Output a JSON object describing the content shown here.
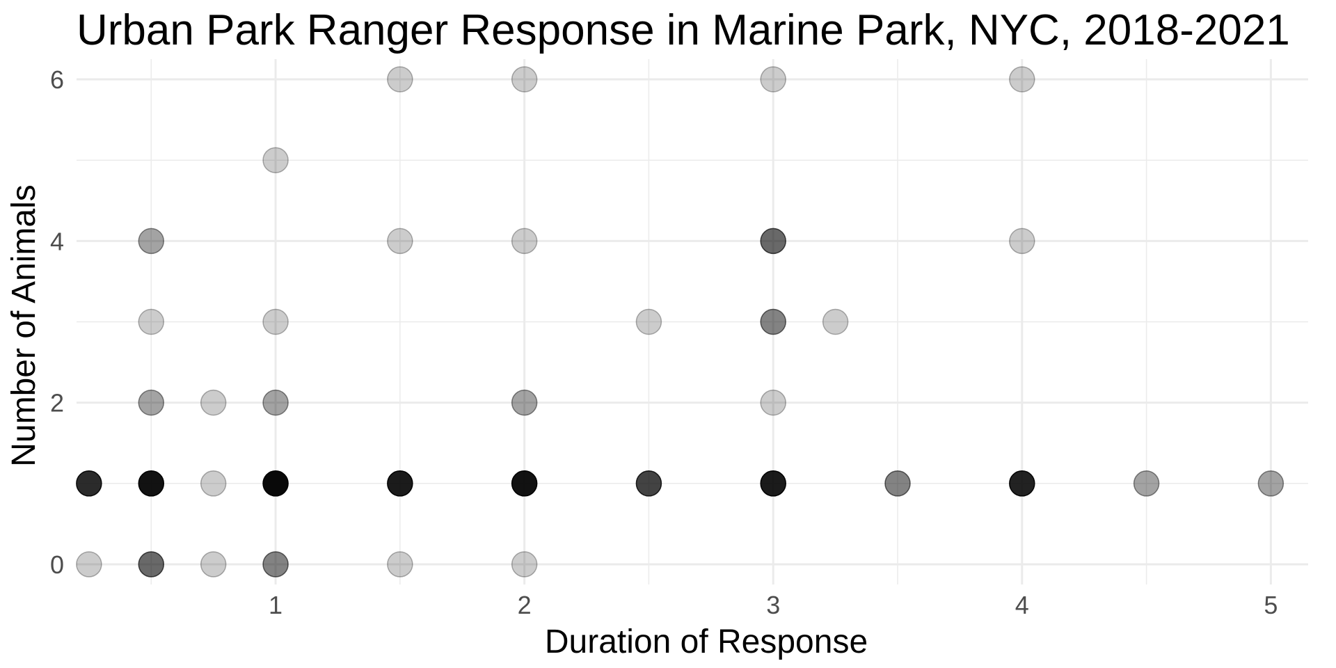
{
  "chart_data": {
    "type": "scatter",
    "title": "Urban Park Ranger Response in Marine Park, NYC, 2018-2021",
    "xlabel": "Duration of Response",
    "ylabel": "Number of Animals",
    "xlim": [
      0.2,
      5.15
    ],
    "ylim": [
      -0.25,
      6.25
    ],
    "x_ticks": [
      1,
      2,
      3,
      4,
      5
    ],
    "y_ticks": [
      0,
      2,
      4,
      6
    ],
    "x_minor_grid": [
      0.5,
      1.5,
      2.5,
      3.5,
      4.5
    ],
    "y_minor_grid": [
      1,
      3,
      5
    ],
    "grid": true,
    "point_color": "#000000",
    "point_alpha": 0.2,
    "grid_color": "#ebebeb",
    "points": [
      {
        "x": 0.25,
        "y": 0,
        "n": 1
      },
      {
        "x": 0.5,
        "y": 0,
        "n": 4
      },
      {
        "x": 0.75,
        "y": 0,
        "n": 1
      },
      {
        "x": 1,
        "y": 0,
        "n": 3
      },
      {
        "x": 1.5,
        "y": 0,
        "n": 1
      },
      {
        "x": 2,
        "y": 0,
        "n": 1
      },
      {
        "x": 0.25,
        "y": 1,
        "n": 8
      },
      {
        "x": 0.5,
        "y": 1,
        "n": 12
      },
      {
        "x": 0.75,
        "y": 1,
        "n": 1
      },
      {
        "x": 1,
        "y": 1,
        "n": 15
      },
      {
        "x": 1.5,
        "y": 1,
        "n": 10
      },
      {
        "x": 2,
        "y": 1,
        "n": 12
      },
      {
        "x": 2.5,
        "y": 1,
        "n": 6
      },
      {
        "x": 3,
        "y": 1,
        "n": 10
      },
      {
        "x": 3.5,
        "y": 1,
        "n": 3
      },
      {
        "x": 4,
        "y": 1,
        "n": 9
      },
      {
        "x": 4.5,
        "y": 1,
        "n": 2
      },
      {
        "x": 5,
        "y": 1,
        "n": 2
      },
      {
        "x": 0.5,
        "y": 2,
        "n": 2
      },
      {
        "x": 0.75,
        "y": 2,
        "n": 1
      },
      {
        "x": 1,
        "y": 2,
        "n": 2
      },
      {
        "x": 2,
        "y": 2,
        "n": 2
      },
      {
        "x": 3,
        "y": 2,
        "n": 1
      },
      {
        "x": 0.5,
        "y": 3,
        "n": 1
      },
      {
        "x": 1,
        "y": 3,
        "n": 1
      },
      {
        "x": 2.5,
        "y": 3,
        "n": 1
      },
      {
        "x": 3,
        "y": 3,
        "n": 3
      },
      {
        "x": 3.25,
        "y": 3,
        "n": 1
      },
      {
        "x": 0.5,
        "y": 4,
        "n": 2
      },
      {
        "x": 1.5,
        "y": 4,
        "n": 1
      },
      {
        "x": 2,
        "y": 4,
        "n": 1
      },
      {
        "x": 3,
        "y": 4,
        "n": 4
      },
      {
        "x": 4,
        "y": 4,
        "n": 1
      },
      {
        "x": 1,
        "y": 5,
        "n": 1
      },
      {
        "x": 1.5,
        "y": 6,
        "n": 1
      },
      {
        "x": 2,
        "y": 6,
        "n": 1
      },
      {
        "x": 3,
        "y": 6,
        "n": 1
      },
      {
        "x": 4,
        "y": 6,
        "n": 1
      }
    ]
  }
}
